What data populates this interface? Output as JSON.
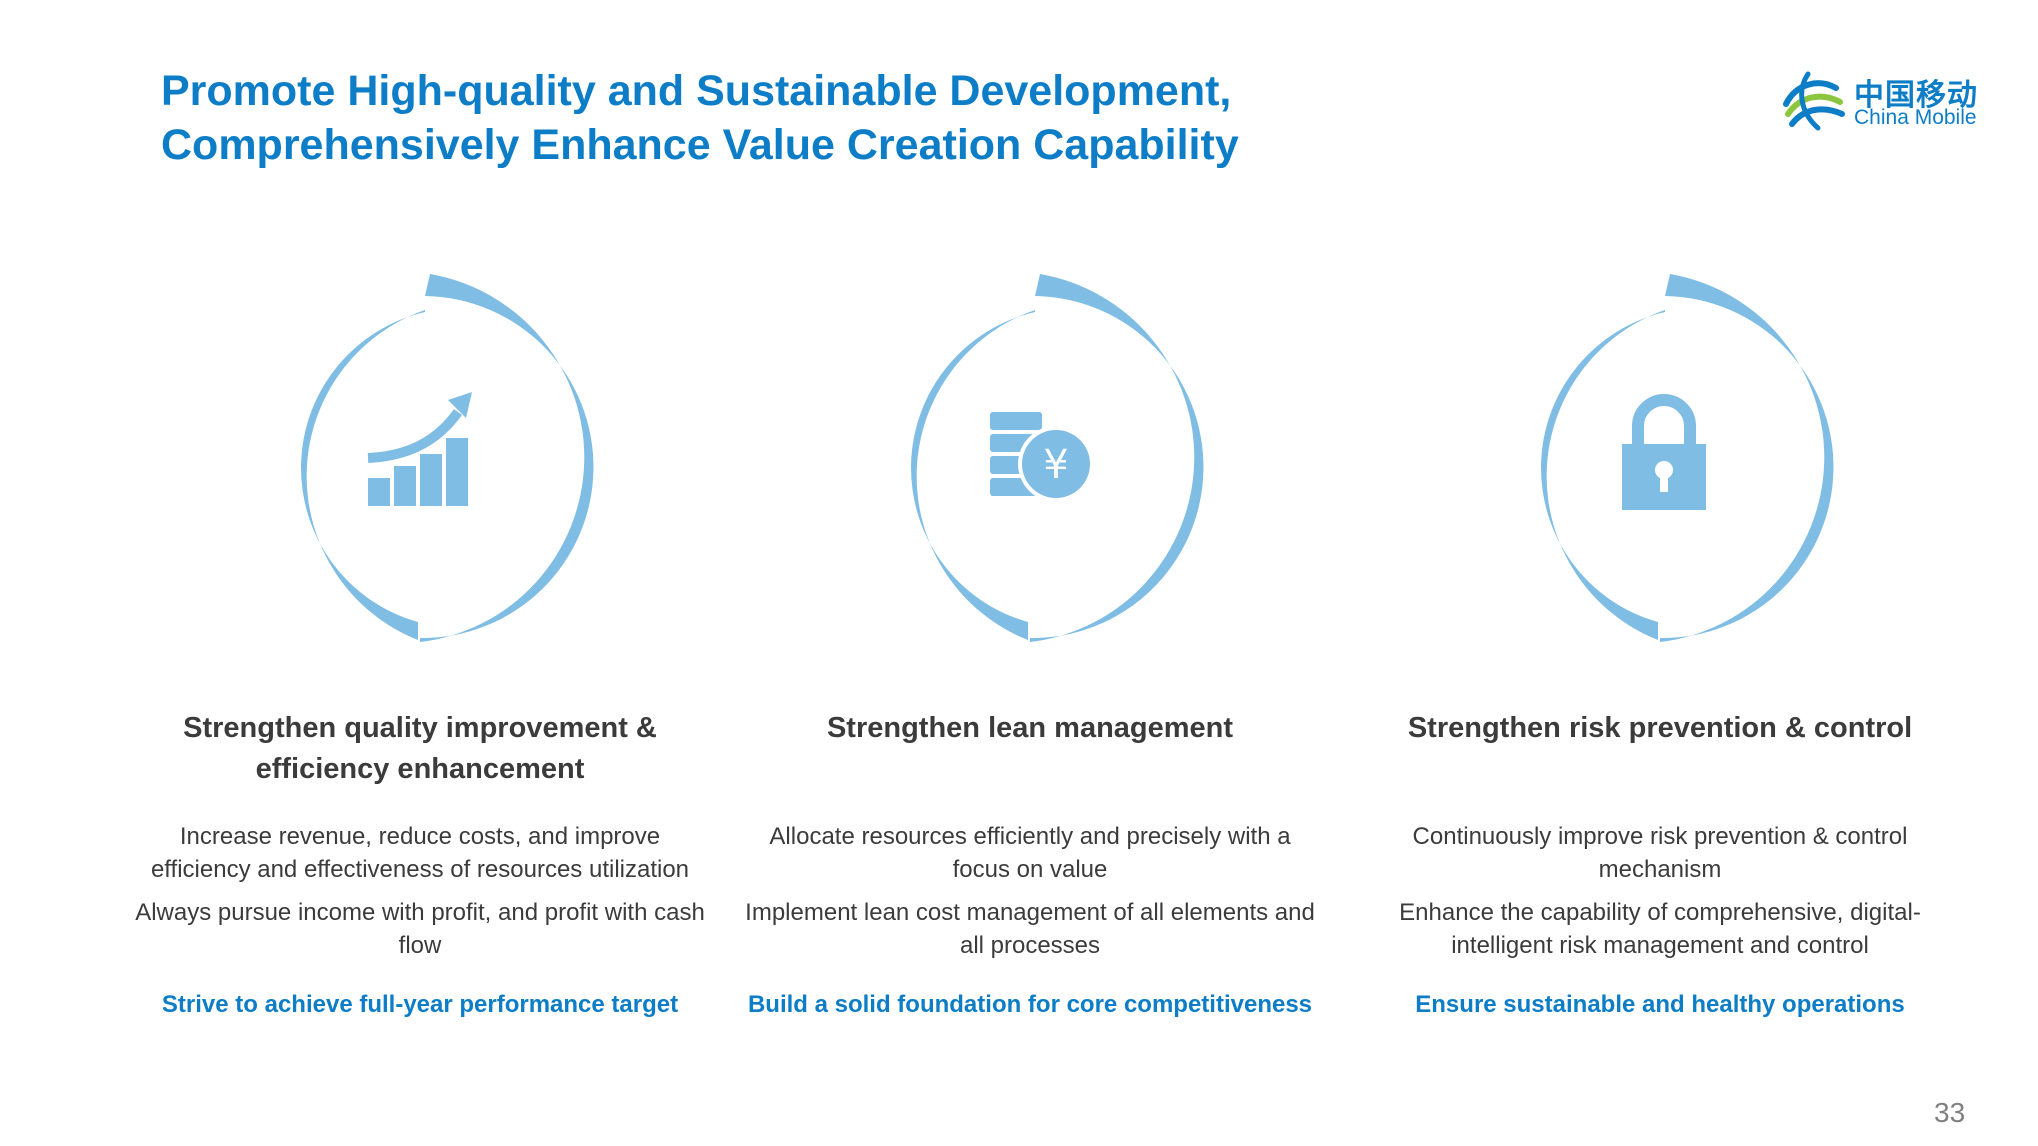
{
  "title": {
    "line1": "Promote High-quality and Sustainable Development,",
    "line2": "Comprehensively Enhance Value Creation Capability"
  },
  "logo": {
    "chinese": "中国移动",
    "english": "China Mobile"
  },
  "colors": {
    "accent": "#0c7dc6",
    "ring": "#7fbde4",
    "text": "#3b3b3b"
  },
  "columns": [
    {
      "icon": "growth-chart-icon",
      "heading": "Strengthen quality improvement & efficiency enhancement",
      "bullets": [
        "Increase revenue, reduce costs, and improve efficiency and effectiveness of resources utilization",
        "Always pursue income with profit, and profit with cash flow"
      ],
      "tagline": "Strive to achieve full-year performance target"
    },
    {
      "icon": "yuan-coins-icon",
      "heading": "Strengthen lean management",
      "bullets": [
        "Allocate resources efficiently and precisely with a focus on value",
        "Implement lean cost management of all elements and all processes"
      ],
      "tagline": "Build a solid foundation for core competitiveness"
    },
    {
      "icon": "lock-icon",
      "heading": "Strengthen risk prevention & control",
      "bullets": [
        "Continuously improve risk prevention & control mechanism",
        "Enhance the capability of comprehensive, digital-intelligent risk management and control"
      ],
      "tagline": "Ensure sustainable and healthy operations"
    }
  ],
  "page_number": "33"
}
